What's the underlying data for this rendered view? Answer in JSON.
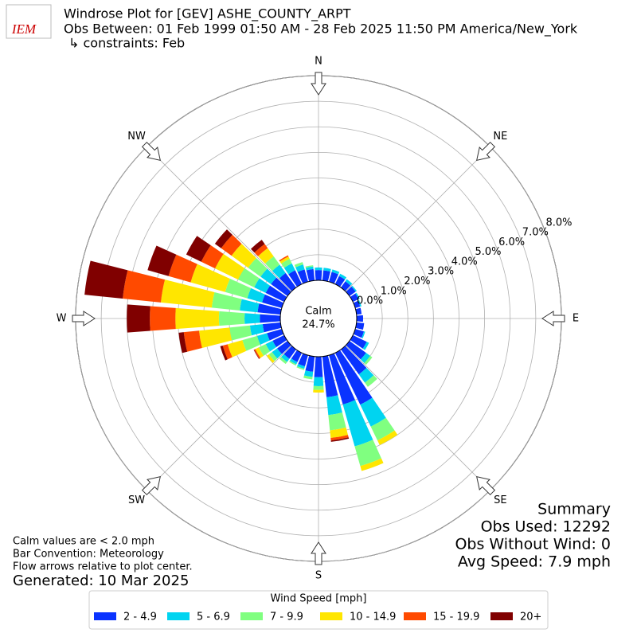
{
  "chart_data": {
    "type": "windrose",
    "logo": "IEM",
    "title": "Windrose Plot for [GEV] ASHE_COUNTY_ARPT",
    "subtitle": "Obs Between: 01 Feb 1999 01:50 AM - 28 Feb 2025 11:50 PM America/New_York",
    "constraints": "↳ constraints: Feb",
    "directions": [
      0,
      10,
      20,
      30,
      40,
      50,
      60,
      70,
      80,
      90,
      100,
      110,
      120,
      130,
      140,
      150,
      160,
      170,
      180,
      190,
      200,
      210,
      220,
      230,
      240,
      250,
      260,
      270,
      280,
      290,
      300,
      310,
      320,
      330,
      340,
      350
    ],
    "series": [
      {
        "name": "2 - 4.9",
        "color": "#0a33ff",
        "values": [
          0.4,
          0.4,
          0.4,
          0.35,
          0.3,
          0.3,
          0.25,
          0.2,
          0.2,
          0.25,
          0.3,
          0.35,
          0.6,
          0.8,
          1.2,
          2.25,
          2.0,
          1.6,
          0.8,
          0.6,
          0.45,
          0.4,
          0.45,
          0.5,
          0.5,
          0.6,
          0.7,
          0.8,
          0.9,
          0.8,
          0.8,
          0.8,
          0.7,
          0.6,
          0.5,
          0.45
        ]
      },
      {
        "name": "5 - 6.9",
        "color": "#00d4f0",
        "values": [
          0.1,
          0.1,
          0.1,
          0.1,
          0.1,
          0.05,
          0.05,
          0.05,
          0,
          0,
          0,
          0.05,
          0.1,
          0.2,
          0.4,
          0.95,
          1.7,
          0.7,
          0.35,
          0.2,
          0.1,
          0.1,
          0.15,
          0.25,
          0.3,
          0.4,
          0.5,
          0.6,
          0.7,
          0.6,
          0.5,
          0.5,
          0.4,
          0.3,
          0.2,
          0.1
        ]
      },
      {
        "name": "7 - 9.9",
        "color": "#80ff80",
        "values": [
          0,
          0,
          0,
          0,
          0,
          0,
          0,
          0,
          0,
          0,
          0,
          0,
          0,
          0.1,
          0.2,
          0.6,
          0.8,
          0.6,
          0.15,
          0.1,
          0.05,
          0.05,
          0.1,
          0.15,
          0.3,
          0.6,
          0.8,
          1.0,
          1.1,
          0.9,
          0.7,
          0.6,
          0.4,
          0.2,
          0.1,
          0.05
        ]
      },
      {
        "name": "10 - 14.9",
        "color": "#ffe600",
        "values": [
          0,
          0,
          0,
          0,
          0,
          0,
          0,
          0,
          0,
          0,
          0,
          0,
          0,
          0,
          0,
          0.2,
          0.2,
          0.3,
          0.1,
          0,
          0,
          0,
          0,
          0.1,
          0.15,
          0.6,
          1.2,
          1.7,
          2.0,
          1.4,
          1.0,
          0.8,
          0.4,
          0.1,
          0,
          0
        ]
      },
      {
        "name": "15 - 19.9",
        "color": "#ff4a00",
        "values": [
          0,
          0,
          0,
          0,
          0,
          0,
          0,
          0,
          0,
          0,
          0,
          0,
          0,
          0,
          0,
          0,
          0,
          0.1,
          0,
          0,
          0,
          0,
          0,
          0,
          0.05,
          0.2,
          0.6,
          1.0,
          1.5,
          0.9,
          0.6,
          0.5,
          0.2,
          0.05,
          0,
          0
        ]
      },
      {
        "name": "20+",
        "color": "#800000",
        "values": [
          0,
          0,
          0,
          0,
          0,
          0,
          0,
          0,
          0,
          0,
          0,
          0,
          0,
          0,
          0,
          0,
          0,
          0.05,
          0,
          0,
          0,
          0,
          0,
          0,
          0.02,
          0.1,
          0.2,
          0.9,
          1.5,
          0.85,
          0.65,
          0.3,
          0.2,
          0,
          0,
          0
        ]
      }
    ],
    "rlim": [
      0,
      8
    ],
    "rticks": [
      {
        "value": 0,
        "label": "0.0%"
      },
      {
        "value": 1,
        "label": "1.0%"
      },
      {
        "value": 2,
        "label": "2.0%"
      },
      {
        "value": 3,
        "label": "3.0%"
      },
      {
        "value": 4,
        "label": "4.0%"
      },
      {
        "value": 5,
        "label": "5.0%"
      },
      {
        "value": 6,
        "label": "6.0%"
      },
      {
        "value": 7,
        "label": "7.0%"
      },
      {
        "value": 8,
        "label": "8.0%"
      }
    ],
    "compass": [
      {
        "label": "N",
        "angle": 0
      },
      {
        "label": "NE",
        "angle": 45
      },
      {
        "label": "E",
        "angle": 90
      },
      {
        "label": "SE",
        "angle": 135
      },
      {
        "label": "S",
        "angle": 180
      },
      {
        "label": "SW",
        "angle": 225
      },
      {
        "label": "W",
        "angle": 270
      },
      {
        "label": "NW",
        "angle": 315
      }
    ],
    "calm": {
      "label": "Calm",
      "value": 24.7,
      "value_label": "24.7%"
    },
    "summary": [
      "Summary",
      "Obs Used: 12292",
      "Obs Without Wind: 0",
      "Avg Speed: 7.9 mph"
    ],
    "notes": [
      "Calm values are < 2.0 mph",
      "Bar Convention: Meteorology",
      "Flow arrows relative to plot center."
    ],
    "generated": "Generated: 10 Mar 2025",
    "legend_title": "Wind Speed [mph]",
    "grid": true
  }
}
